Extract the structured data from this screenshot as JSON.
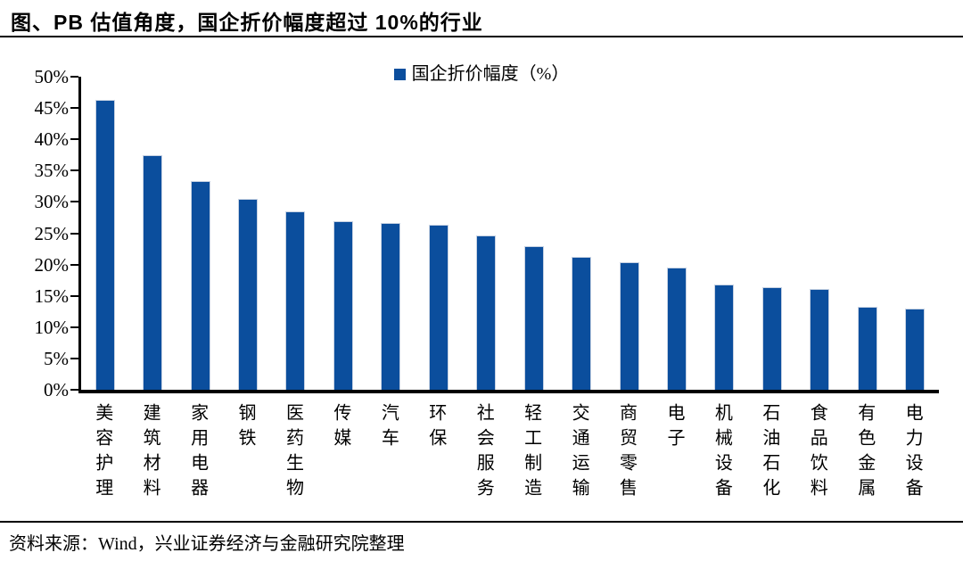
{
  "chart_data": {
    "type": "bar",
    "title": "图、PB 估值角度，国企折价幅度超过 10%的行业",
    "legend": [
      "国企折价幅度（%）"
    ],
    "legend_position": "top-center",
    "categories": [
      "美容护理",
      "建筑材料",
      "家用电器",
      "钢铁",
      "医药生物",
      "传媒",
      "汽车",
      "环保",
      "社会服务",
      "轻工制造",
      "交通运输",
      "商贸零售",
      "电子",
      "机械设备",
      "石油石化",
      "食品饮料",
      "有色金属",
      "电力设备"
    ],
    "values": [
      46.3,
      37.5,
      33.4,
      30.5,
      28.5,
      26.9,
      26.6,
      26.3,
      24.7,
      22.9,
      21.2,
      20.3,
      19.5,
      16.8,
      16.4,
      16.1,
      13.2,
      13.0
    ],
    "xlabel": "",
    "ylabel": "",
    "ylim": [
      0,
      50
    ],
    "y_ticks": [
      "50%",
      "45%",
      "40%",
      "35%",
      "30%",
      "25%",
      "20%",
      "15%",
      "10%",
      "5%",
      "0%"
    ],
    "grid": false,
    "bar_color": "#0b4e9d",
    "axis_color": "#000000"
  },
  "footer": {
    "source": "资料来源：Wind，兴业证券经济与金融研究院整理"
  }
}
